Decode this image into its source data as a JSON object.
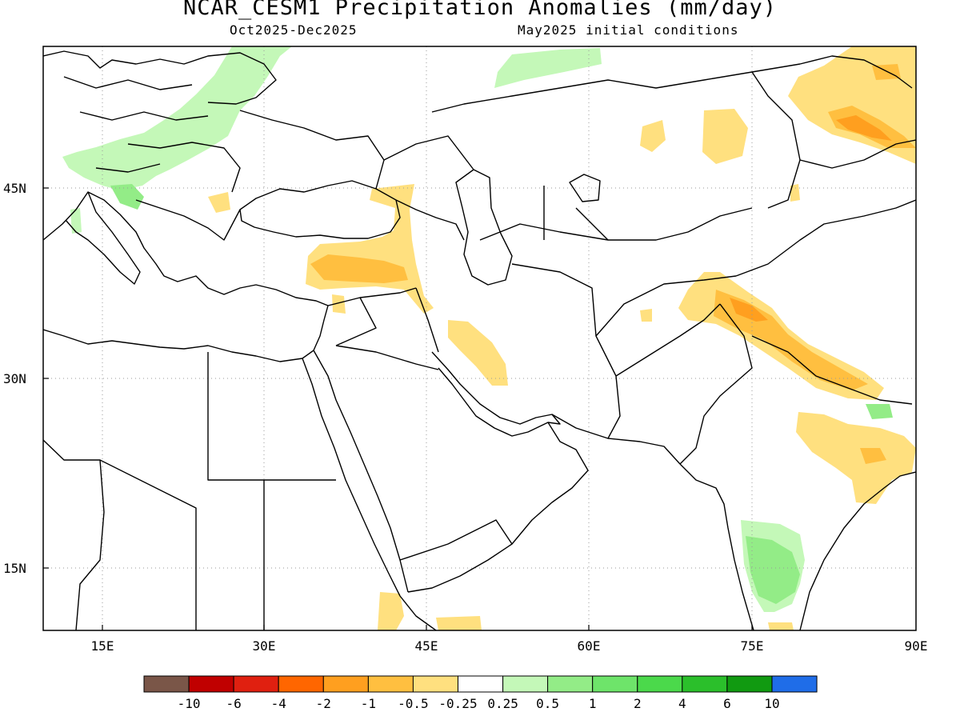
{
  "header": {
    "title": "NCAR_CESM1 Precipitation Anomalies (mm/day)",
    "period": "Oct2025-Dec2025",
    "init": "May2025 initial conditions"
  },
  "axes": {
    "lon_ticks": [
      "15E",
      "30E",
      "45E",
      "60E",
      "75E",
      "90E"
    ],
    "lat_ticks": [
      "45N",
      "30N",
      "15N"
    ]
  },
  "colorbar": {
    "colors": [
      "#7a5648",
      "#c00000",
      "#e02010",
      "#ff6600",
      "#ff9f1f",
      "#ffbf40",
      "#ffe07f",
      "#ffffff",
      "#c4f8b8",
      "#93ec87",
      "#6ee46a",
      "#4bd94b",
      "#2bbf2b",
      "#119a11",
      "#1f6de8"
    ],
    "labels": [
      "-10",
      "-6",
      "-4",
      "-2",
      "-1",
      "-0.5",
      "-0.25",
      "0.25",
      "0.5",
      "1",
      "2",
      "4",
      "6",
      "10"
    ]
  },
  "palette": {
    "dry_light": "#ffe07f",
    "dry_mid": "#ffbf40",
    "dry_strong": "#ff9f1f",
    "wet_light": "#c4f8b8",
    "wet_mid": "#93ec87",
    "wet_strong": "#6ee46a"
  }
}
